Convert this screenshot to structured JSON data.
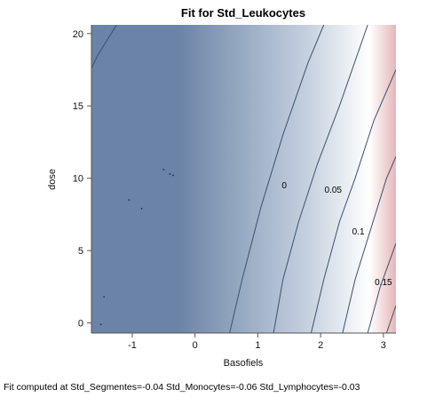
{
  "chart_data": {
    "type": "contour",
    "title": "Fit for Std_Leukocytes",
    "xlabel": "Basofiels",
    "ylabel": "dose",
    "xlim": [
      -1.65,
      3.2
    ],
    "ylim": [
      -0.7,
      20.6
    ],
    "x_ticks": [
      -1,
      0,
      1,
      2,
      3
    ],
    "y_ticks": [
      0,
      5,
      10,
      15,
      20
    ],
    "color_low": "#6a83a6",
    "color_mid": "#ffffff",
    "color_high": "#d07d80",
    "contour_lines": [
      {
        "label": "",
        "points": [
          [
            -1.25,
            20.6
          ],
          [
            -1.55,
            18.5
          ],
          [
            -1.65,
            17.6
          ]
        ]
      },
      {
        "label": "",
        "points": [
          [
            0.55,
            -0.7
          ],
          [
            0.75,
            3
          ],
          [
            1.05,
            8
          ],
          [
            1.4,
            13
          ],
          [
            1.8,
            18
          ],
          [
            2.05,
            20.6
          ]
        ]
      },
      {
        "label": "0",
        "points": [
          [
            1.25,
            -0.7
          ],
          [
            1.4,
            3
          ],
          [
            1.65,
            7
          ],
          [
            1.95,
            11
          ],
          [
            2.3,
            15
          ],
          [
            2.75,
            20.6
          ]
        ]
      },
      {
        "label": "0.05",
        "points": [
          [
            1.85,
            -0.7
          ],
          [
            2.05,
            3
          ],
          [
            2.3,
            7
          ],
          [
            2.55,
            10
          ],
          [
            2.85,
            14
          ],
          [
            3.2,
            17.5
          ]
        ]
      },
      {
        "label": "0.1",
        "points": [
          [
            2.35,
            -0.7
          ],
          [
            2.55,
            3
          ],
          [
            2.8,
            6.5
          ],
          [
            3.05,
            10
          ],
          [
            3.2,
            11.5
          ]
        ]
      },
      {
        "label": "0.15",
        "points": [
          [
            2.75,
            -0.7
          ],
          [
            2.95,
            2.5
          ],
          [
            3.2,
            5.5
          ]
        ]
      },
      {
        "label": "",
        "points": [
          [
            3.05,
            -0.7
          ],
          [
            3.2,
            1.2
          ]
        ]
      }
    ],
    "contour_labels": [
      {
        "text": "0",
        "x": 1.42,
        "y": 9.3
      },
      {
        "text": "0.05",
        "x": 2.2,
        "y": 9.0
      },
      {
        "text": "0.1",
        "x": 2.6,
        "y": 6.1
      },
      {
        "text": "0.15",
        "x": 3.0,
        "y": 2.6
      }
    ],
    "points": [
      {
        "x": -0.5,
        "y": 10.6
      },
      {
        "x": -0.4,
        "y": 10.3
      },
      {
        "x": -0.35,
        "y": 10.2
      },
      {
        "x": -1.05,
        "y": 8.5
      },
      {
        "x": -0.85,
        "y": 7.9
      },
      {
        "x": -1.5,
        "y": -0.1
      },
      {
        "x": -1.45,
        "y": 1.8
      }
    ]
  },
  "footnote": "Fit computed at Std_Segmentes=-0.04 Std_Monocytes=-0.06 Std_Lymphocytes=-0.03"
}
